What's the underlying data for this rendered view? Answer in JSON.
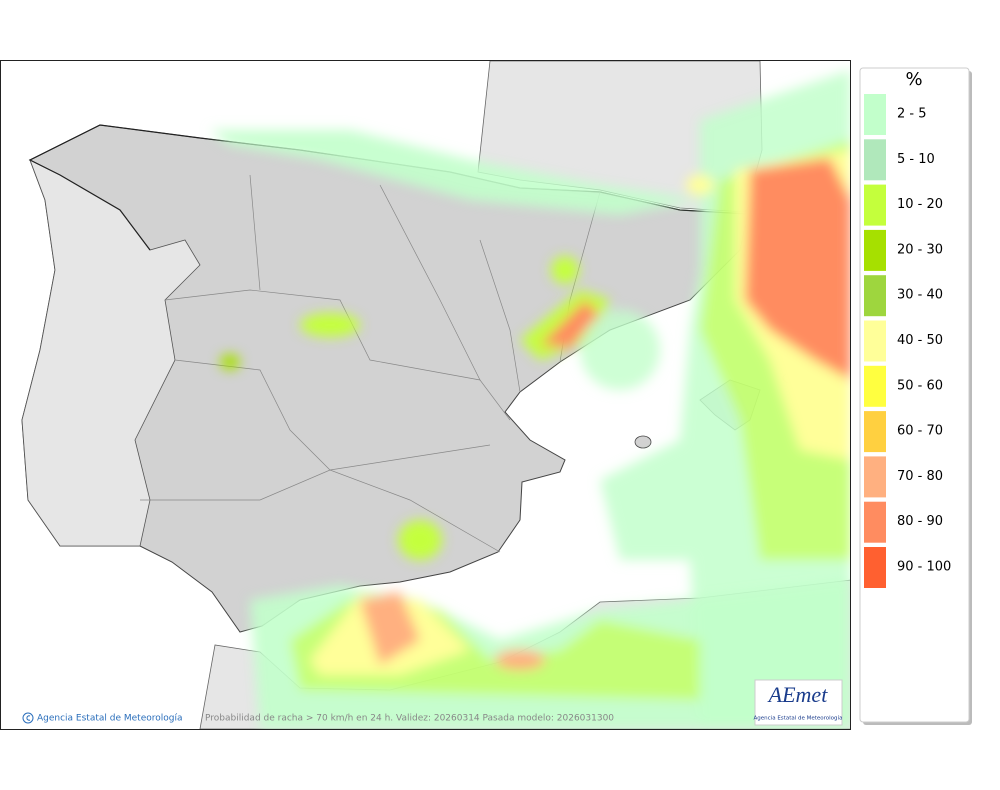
{
  "legend": {
    "title": "%",
    "items": [
      {
        "label": "2 - 5",
        "color": "#c2ffcb"
      },
      {
        "label": "5 - 10",
        "color": "#b0e8bb"
      },
      {
        "label": "10 - 20",
        "color": "#c4ff3c"
      },
      {
        "label": "20 - 30",
        "color": "#a6e000"
      },
      {
        "label": "30 - 40",
        "color": "#9ed63e"
      },
      {
        "label": "40 - 50",
        "color": "#ffff99"
      },
      {
        "label": "50 - 60",
        "color": "#ffff40"
      },
      {
        "label": "60 - 70",
        "color": "#ffd040"
      },
      {
        "label": "70 - 80",
        "color": "#ffb080"
      },
      {
        "label": "80 - 90",
        "color": "#ff8c60"
      },
      {
        "label": "90 - 100",
        "color": "#ff6030"
      }
    ]
  },
  "footer": {
    "credit": "Agencia Estatal de Meteorología",
    "caption": "Probabilidad de racha > 70 km/h en 24 h. Validez: 20260314 Pasada modelo: 2026031300"
  },
  "logo": {
    "name": "AEmet",
    "subtitle": "Agencia Estatal de Meteorología"
  }
}
